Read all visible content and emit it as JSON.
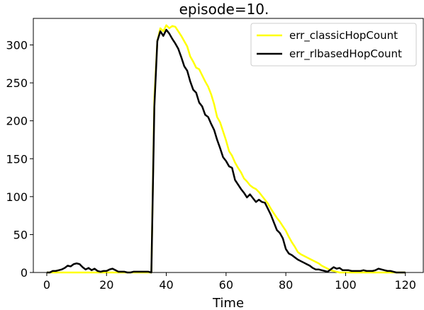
{
  "chart_data": {
    "type": "line",
    "title": "episode=10.",
    "xlabel": "Time",
    "ylabel": "",
    "xlim": [
      -4.5,
      126
    ],
    "ylim": [
      0,
      335
    ],
    "x_ticks": [
      0,
      20,
      40,
      60,
      80,
      100,
      120
    ],
    "y_ticks": [
      0,
      50,
      100,
      150,
      200,
      250,
      300
    ],
    "grid": false,
    "legend_position": "top-right",
    "series": [
      {
        "name": "err_classicHopCount",
        "color": "#ffff00",
        "x": [
          0,
          1,
          2,
          3,
          4,
          5,
          6,
          7,
          8,
          9,
          10,
          11,
          12,
          13,
          14,
          15,
          16,
          17,
          18,
          19,
          20,
          21,
          22,
          23,
          24,
          25,
          26,
          27,
          28,
          29,
          30,
          31,
          32,
          33,
          34,
          35,
          36,
          37,
          38,
          39,
          40,
          41,
          42,
          43,
          44,
          45,
          46,
          47,
          48,
          49,
          50,
          51,
          52,
          53,
          54,
          55,
          56,
          57,
          58,
          59,
          60,
          61,
          62,
          63,
          64,
          65,
          66,
          67,
          68,
          69,
          70,
          71,
          72,
          73,
          74,
          75,
          76,
          77,
          78,
          79,
          80,
          81,
          82,
          83,
          84,
          85,
          86,
          87,
          88,
          89,
          90,
          91,
          92,
          93,
          94,
          95,
          96,
          97,
          98,
          99,
          100,
          101,
          102,
          103,
          104,
          105,
          106,
          107,
          108,
          109,
          110,
          111,
          112,
          113,
          114,
          115,
          116,
          117,
          118,
          119,
          120
        ],
        "values": [
          0,
          0,
          0,
          0,
          0,
          0,
          0,
          0,
          0,
          0,
          0,
          0,
          0,
          0,
          0,
          0,
          0,
          0,
          0,
          0,
          0,
          0,
          0,
          0,
          0,
          0,
          0,
          0,
          0,
          0,
          0,
          0,
          0,
          0,
          0,
          0,
          230,
          305,
          322,
          318,
          326,
          322,
          325,
          324,
          318,
          312,
          305,
          298,
          285,
          278,
          270,
          268,
          260,
          252,
          245,
          235,
          222,
          205,
          198,
          186,
          174,
          160,
          154,
          145,
          138,
          132,
          124,
          120,
          115,
          112,
          110,
          106,
          101,
          96,
          91,
          84,
          78,
          72,
          67,
          61,
          55,
          47,
          40,
          34,
          27,
          24,
          22,
          20,
          18,
          16,
          14,
          12,
          9,
          7,
          5,
          3,
          2,
          1,
          0,
          0,
          0,
          0,
          0,
          0,
          0,
          0,
          0,
          0,
          0,
          0,
          0,
          0,
          0,
          0,
          0,
          0,
          0,
          0,
          0,
          0,
          0
        ]
      },
      {
        "name": "err_rlbasedHopCount",
        "color": "#000000",
        "x": [
          0,
          1,
          2,
          3,
          4,
          5,
          6,
          7,
          8,
          9,
          10,
          11,
          12,
          13,
          14,
          15,
          16,
          17,
          18,
          19,
          20,
          21,
          22,
          23,
          24,
          25,
          26,
          27,
          28,
          29,
          30,
          31,
          32,
          33,
          34,
          35,
          36,
          37,
          38,
          39,
          40,
          41,
          42,
          43,
          44,
          45,
          46,
          47,
          48,
          49,
          50,
          51,
          52,
          53,
          54,
          55,
          56,
          57,
          58,
          59,
          60,
          61,
          62,
          63,
          64,
          65,
          66,
          67,
          68,
          69,
          70,
          71,
          72,
          73,
          74,
          75,
          76,
          77,
          78,
          79,
          80,
          81,
          82,
          83,
          84,
          85,
          86,
          87,
          88,
          89,
          90,
          91,
          92,
          93,
          94,
          95,
          96,
          97,
          98,
          99,
          100,
          101,
          102,
          103,
          104,
          105,
          106,
          107,
          108,
          109,
          110,
          111,
          112,
          113,
          114,
          115,
          116,
          117,
          118,
          119,
          120
        ],
        "values": [
          0,
          0,
          2,
          2,
          3,
          4,
          6,
          9,
          8,
          11,
          12,
          11,
          7,
          4,
          6,
          3,
          5,
          2,
          1,
          2,
          2,
          4,
          5,
          3,
          1,
          1,
          1,
          0,
          0,
          1,
          1,
          1,
          1,
          1,
          1,
          0,
          218,
          305,
          318,
          312,
          320,
          315,
          308,
          302,
          295,
          284,
          272,
          266,
          252,
          241,
          237,
          224,
          219,
          208,
          205,
          196,
          188,
          175,
          164,
          152,
          147,
          140,
          138,
          122,
          116,
          110,
          105,
          99,
          103,
          98,
          93,
          96,
          93,
          92,
          84,
          76,
          66,
          56,
          52,
          45,
          31,
          25,
          23,
          20,
          17,
          15,
          13,
          11,
          9,
          6,
          4,
          4,
          3,
          2,
          1,
          4,
          7,
          5,
          6,
          3,
          3,
          3,
          2,
          2,
          2,
          2,
          3,
          2,
          2,
          2,
          3,
          5,
          4,
          3,
          2,
          2,
          1,
          0,
          0,
          0,
          0
        ]
      }
    ]
  }
}
